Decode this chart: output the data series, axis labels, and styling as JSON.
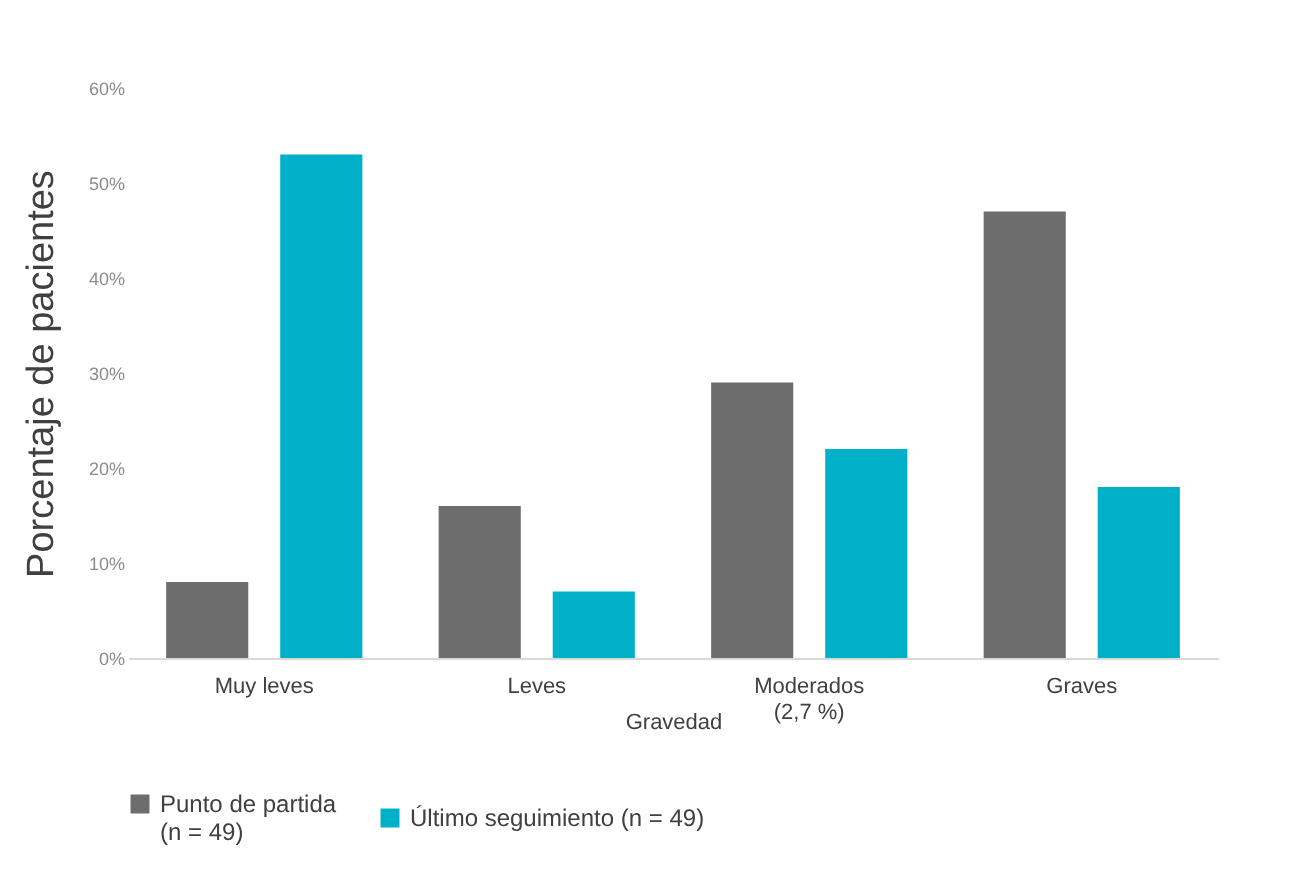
{
  "chart_data": {
    "type": "bar",
    "xlabel": "Gravedad",
    "ylabel": "Porcentaje de pacientes",
    "categories": [
      "Muy leves",
      "Leves",
      "Moderados\n(2,7 %)",
      "Graves"
    ],
    "series": [
      {
        "name": "Punto de partida\n(n = 49)",
        "color": "#6d6d6d",
        "values": [
          8,
          16,
          29,
          47
        ]
      },
      {
        "name": "Último seguimiento (n = 49)",
        "color": "#00b0c9",
        "values": [
          53,
          7,
          22,
          18
        ]
      }
    ],
    "ylim": [
      0,
      60
    ],
    "yticks": [
      {
        "value": 0,
        "label": "0%"
      },
      {
        "value": 10,
        "label": "10%"
      },
      {
        "value": 20,
        "label": "20%"
      },
      {
        "value": 30,
        "label": "30%"
      },
      {
        "value": 40,
        "label": "40%"
      },
      {
        "value": 50,
        "label": "50%"
      },
      {
        "value": 60,
        "label": "60%"
      }
    ],
    "grid": false,
    "legend": "bottom"
  }
}
